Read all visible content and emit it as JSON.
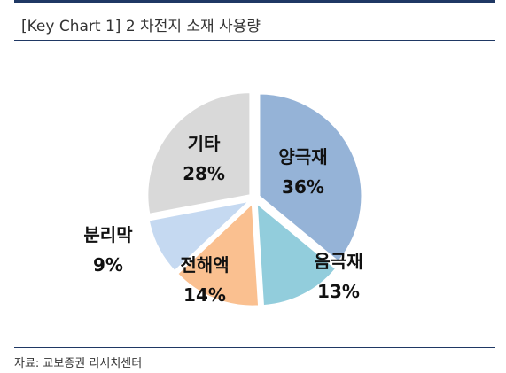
{
  "title": "[Key Chart 1] 2 차전지 소재 사용량",
  "source": "자료: 교보증권 리서치센터",
  "chart_data": {
    "type": "pie",
    "categories": [
      "양극재",
      "음극재",
      "전해액",
      "분리막",
      "기타"
    ],
    "values": [
      36,
      13,
      14,
      9,
      28
    ],
    "value_labels": [
      "36%",
      "13%",
      "14%",
      "9%",
      "28%"
    ],
    "colors": [
      "#95b3d7",
      "#92cddc",
      "#fac090",
      "#c5d9f1",
      "#d9d9d9"
    ],
    "legend": "none"
  }
}
